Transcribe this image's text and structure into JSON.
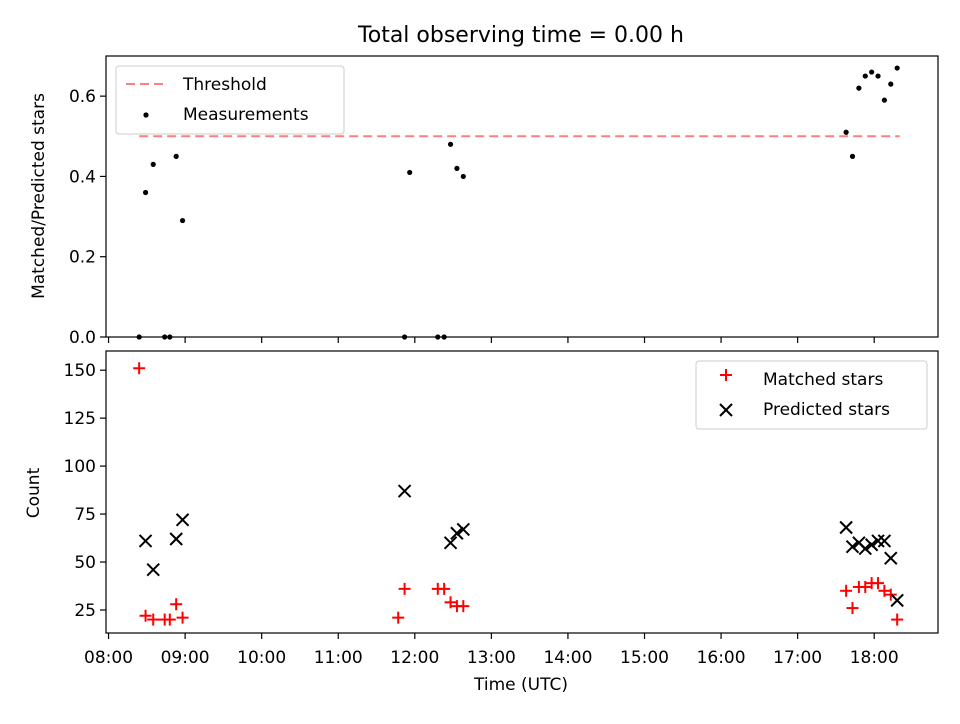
{
  "figure": {
    "title": "Total observing time = 0.00 h"
  },
  "chart_data": [
    {
      "type": "scatter",
      "panel": "top",
      "ylabel": "Matched/Predicted stars",
      "xlim": [
        "07:58",
        "18:50"
      ],
      "ylim": [
        0,
        0.7
      ],
      "yticks": [
        0.0,
        0.2,
        0.4,
        0.6
      ],
      "ytick_labels": [
        "0.0",
        "0.2",
        "0.4",
        "0.6"
      ],
      "legend_position": "top-left",
      "threshold": {
        "name": "Threshold",
        "value": 0.5,
        "x_start": "08:24",
        "x_end": "18:20",
        "color": "#ff7f7f"
      },
      "series": [
        {
          "name": "Measurements",
          "color": "#000000",
          "marker": "dot",
          "x": [
            "08:24",
            "08:29",
            "08:35",
            "08:44",
            "08:48",
            "08:53",
            "08:58",
            "11:52",
            "11:56",
            "12:18",
            "12:23",
            "12:28",
            "12:33",
            "12:38",
            "17:38",
            "17:43",
            "17:48",
            "17:53",
            "17:58",
            "18:03",
            "18:08",
            "18:13",
            "18:18"
          ],
          "y": [
            0.0,
            0.36,
            0.43,
            0.0,
            0.0,
            0.45,
            0.29,
            0.0,
            0.41,
            0.0,
            0.0,
            0.48,
            0.42,
            0.4,
            0.51,
            0.45,
            0.62,
            0.65,
            0.66,
            0.65,
            0.59,
            0.63,
            0.67
          ]
        }
      ]
    },
    {
      "type": "scatter",
      "panel": "bottom",
      "xlabel": "Time (UTC)",
      "ylabel": "Count",
      "xlim": [
        "07:58",
        "18:50"
      ],
      "ylim": [
        13,
        160
      ],
      "yticks": [
        25,
        50,
        75,
        100,
        125,
        150
      ],
      "ytick_labels": [
        "25",
        "50",
        "75",
        "100",
        "125",
        "150"
      ],
      "xticks": [
        "08:00",
        "09:00",
        "10:00",
        "11:00",
        "12:00",
        "13:00",
        "14:00",
        "15:00",
        "16:00",
        "17:00",
        "18:00"
      ],
      "legend_position": "top-right",
      "series": [
        {
          "name": "Matched stars",
          "color": "#ff0000",
          "marker": "plus",
          "x": [
            "08:24",
            "08:29",
            "08:35",
            "08:44",
            "08:48",
            "08:53",
            "08:58",
            "11:47",
            "11:52",
            "12:18",
            "12:23",
            "12:28",
            "12:33",
            "12:38",
            "17:38",
            "17:43",
            "17:48",
            "17:53",
            "17:58",
            "18:03",
            "18:08",
            "18:13",
            "18:18"
          ],
          "y": [
            151,
            22,
            20,
            20,
            20,
            28,
            21,
            21,
            36,
            36,
            36,
            29,
            27,
            27,
            35,
            26,
            37,
            37,
            39,
            39,
            35,
            33,
            20
          ]
        },
        {
          "name": "Predicted stars",
          "color": "#000000",
          "marker": "x",
          "x": [
            "08:29",
            "08:35",
            "08:53",
            "08:58",
            "11:52",
            "12:28",
            "12:33",
            "12:38",
            "17:38",
            "17:43",
            "17:48",
            "17:53",
            "17:58",
            "18:03",
            "18:08",
            "18:13",
            "18:18"
          ],
          "y": [
            61,
            46,
            62,
            72,
            87,
            60,
            65,
            67,
            68,
            58,
            60,
            57,
            59,
            61,
            61,
            52,
            30
          ]
        }
      ]
    }
  ]
}
